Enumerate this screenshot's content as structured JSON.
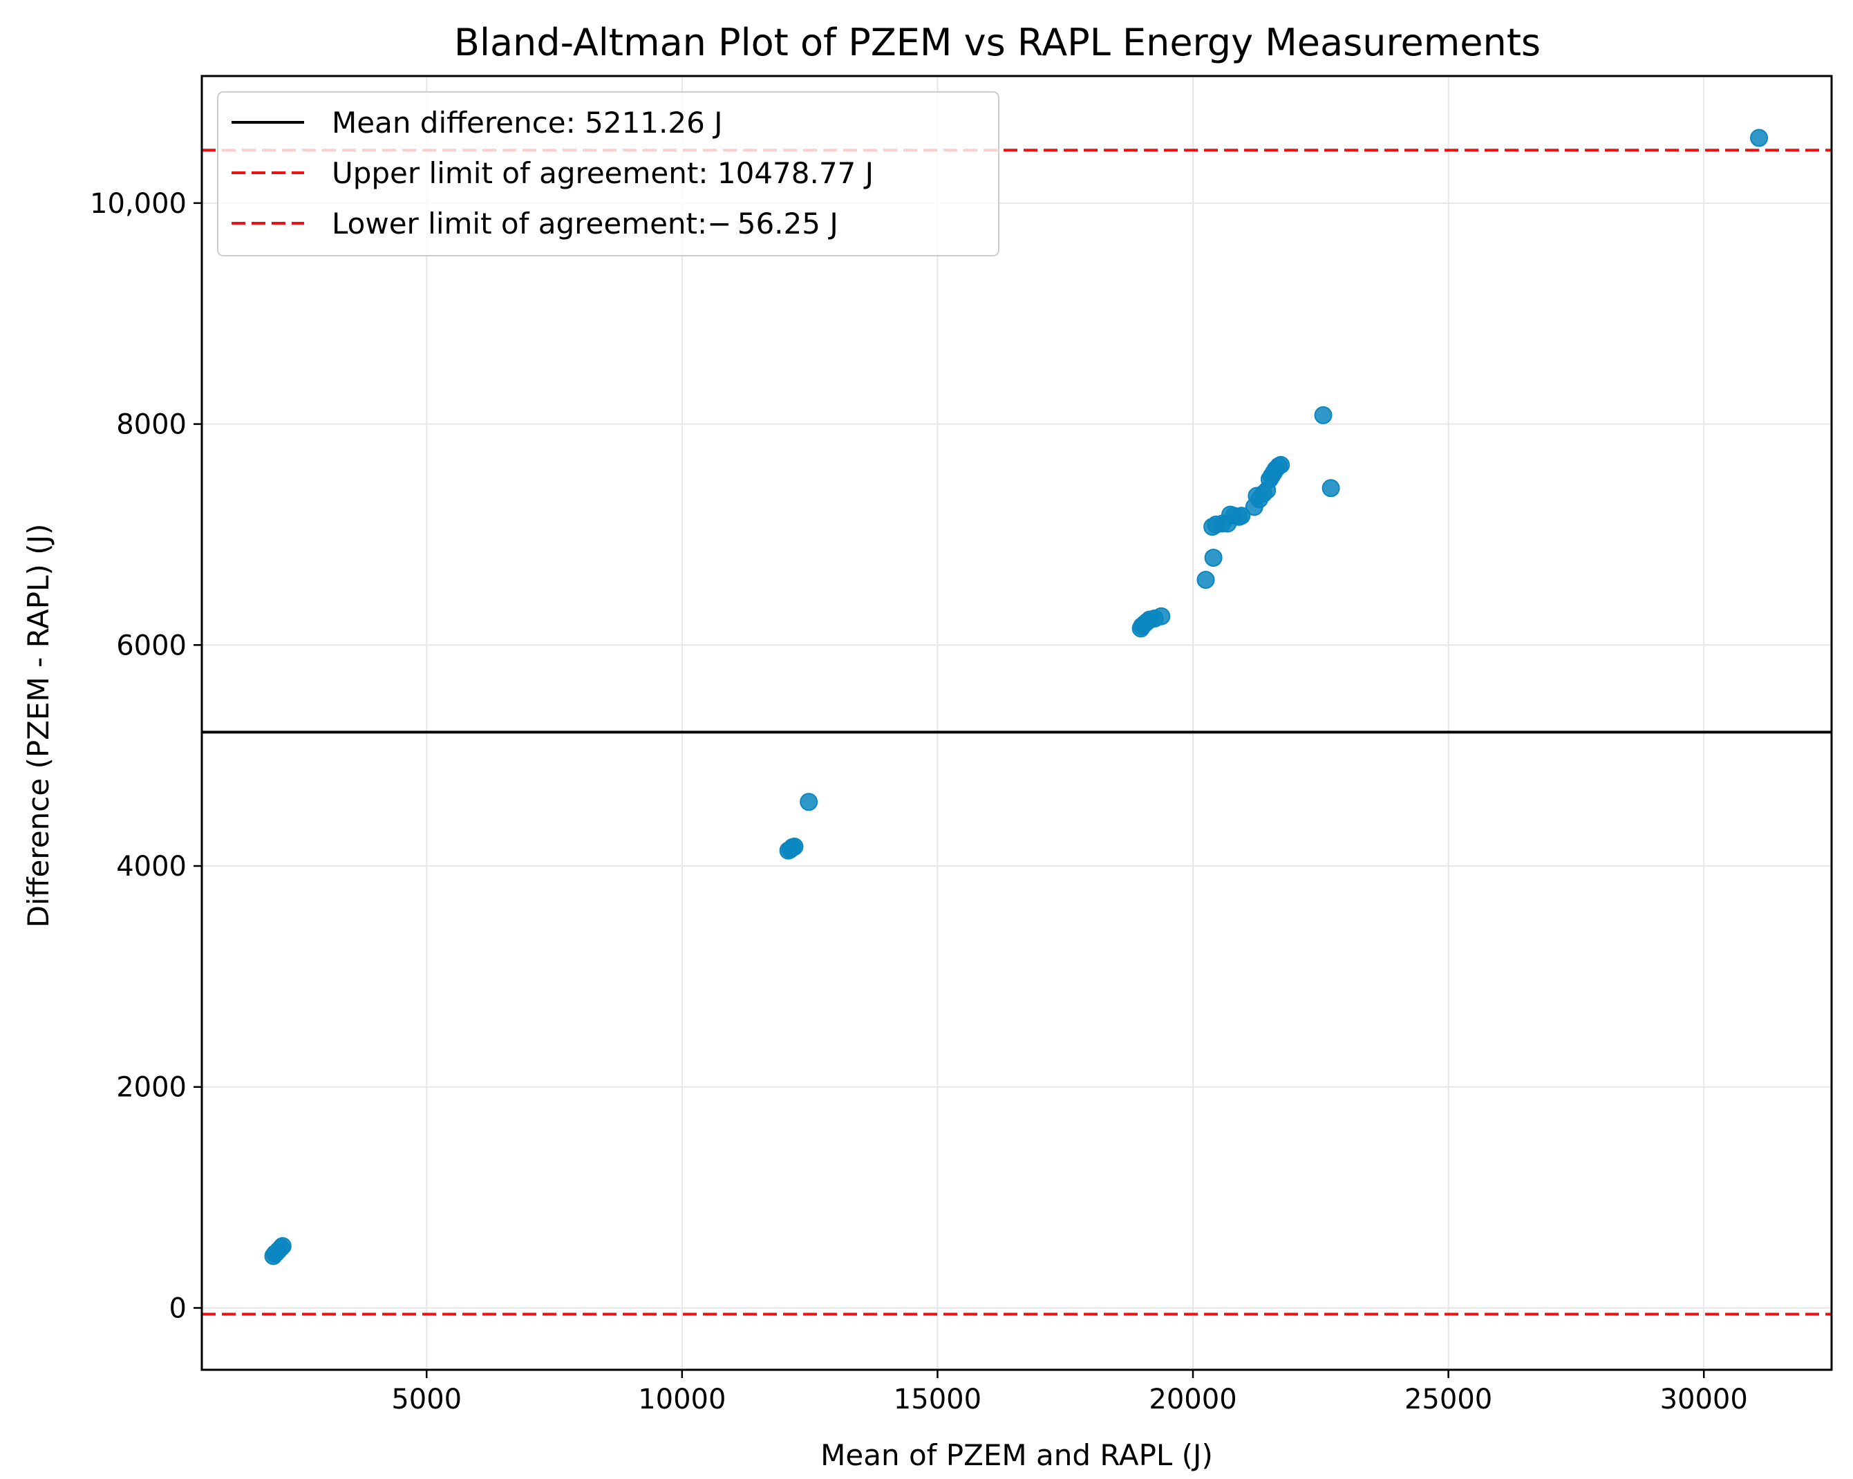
{
  "chart_data": {
    "type": "scatter",
    "title": "Bland-Altman Plot of PZEM vs RAPL Energy Measurements",
    "xlabel": "Mean of PZEM and RAPL (J)",
    "ylabel": "Difference (PZEM - RAPL) (J)",
    "xlim": [
      600,
      32500
    ],
    "ylim": [
      -560,
      11150
    ],
    "xticks": [
      5000,
      10000,
      15000,
      20000,
      25000,
      30000
    ],
    "xtick_labels": [
      "5000",
      "10000",
      "15000",
      "20000",
      "25000",
      "30000"
    ],
    "yticks": [
      0,
      2000,
      4000,
      6000,
      8000,
      10000
    ],
    "ytick_labels": [
      "0",
      "2000",
      "4000",
      "6000",
      "8000",
      "10,000"
    ],
    "grid": true,
    "legend_position": "top-left",
    "lines": [
      {
        "name": "Mean difference",
        "value": 5211.26,
        "label": "Mean difference: 5211.26 J",
        "color": "#000000",
        "style": "solid"
      },
      {
        "name": "Upper limit of agreement",
        "value": 10478.77,
        "label": "Upper limit of agreement: 10478.77 J",
        "color": "#ee1111",
        "style": "dashed"
      },
      {
        "name": "Lower limit of agreement",
        "value": -56.25,
        "label": "Lower limit of agreement:− 56.25 J",
        "color": "#ee1111",
        "style": "dashed"
      }
    ],
    "series": [
      {
        "name": "measurements",
        "color": "#0a86c0",
        "points": [
          [
            2000,
            470
          ],
          [
            2030,
            490
          ],
          [
            2060,
            500
          ],
          [
            2100,
            520
          ],
          [
            2150,
            545
          ],
          [
            2180,
            560
          ],
          [
            12080,
            4140
          ],
          [
            12120,
            4150
          ],
          [
            12160,
            4170
          ],
          [
            12200,
            4175
          ],
          [
            12480,
            4580
          ],
          [
            18980,
            6150
          ],
          [
            19000,
            6170
          ],
          [
            19050,
            6190
          ],
          [
            19100,
            6210
          ],
          [
            19150,
            6230
          ],
          [
            19250,
            6240
          ],
          [
            19380,
            6260
          ],
          [
            20250,
            6590
          ],
          [
            20400,
            6790
          ],
          [
            20380,
            7070
          ],
          [
            20450,
            7090
          ],
          [
            20580,
            7100
          ],
          [
            20680,
            7100
          ],
          [
            20730,
            7180
          ],
          [
            20800,
            7170
          ],
          [
            20900,
            7160
          ],
          [
            20950,
            7170
          ],
          [
            21200,
            7250
          ],
          [
            21250,
            7350
          ],
          [
            21300,
            7320
          ],
          [
            21380,
            7370
          ],
          [
            21450,
            7400
          ],
          [
            21500,
            7500
          ],
          [
            21540,
            7530
          ],
          [
            21580,
            7560
          ],
          [
            21620,
            7590
          ],
          [
            21680,
            7620
          ],
          [
            21720,
            7630
          ],
          [
            22550,
            8080
          ],
          [
            22700,
            7420
          ],
          [
            31080,
            10590
          ]
        ]
      }
    ]
  }
}
